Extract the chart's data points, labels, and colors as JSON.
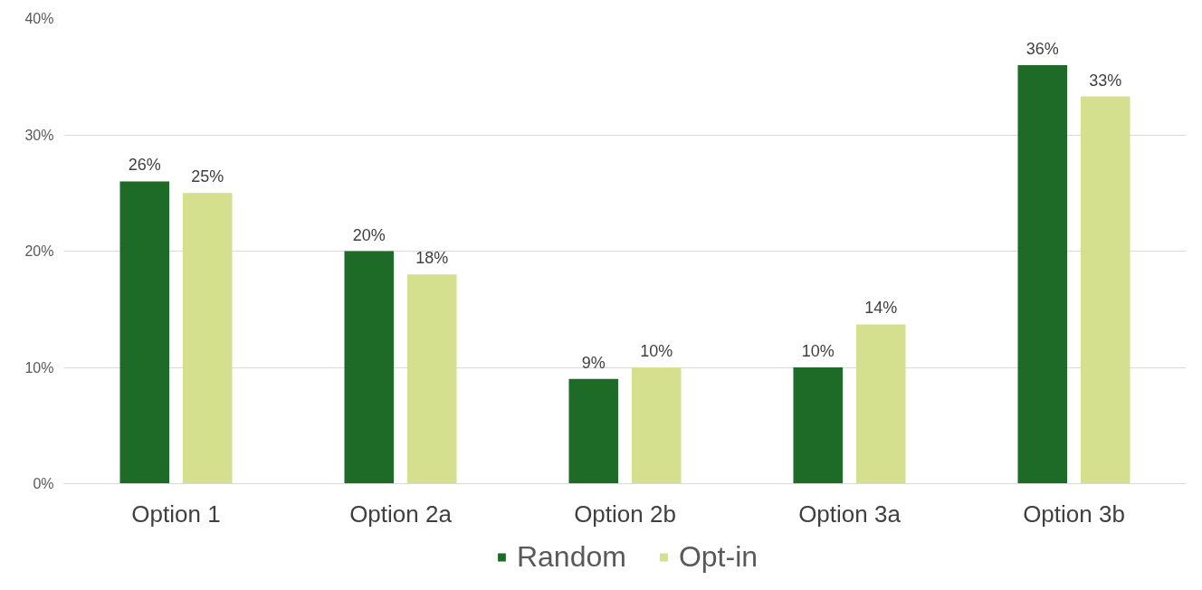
{
  "chart_data": {
    "type": "bar",
    "categories": [
      "Option 1",
      "Option 2a",
      "Option 2b",
      "Option 3a",
      "Option 3b"
    ],
    "series": [
      {
        "name": "Random",
        "color": "#1d6b26",
        "values": [
          26,
          20,
          9,
          10,
          36
        ],
        "value_labels": [
          "26%",
          "20%",
          "9%",
          "10%",
          "36%"
        ]
      },
      {
        "name": "Opt-in",
        "color": "#d5e08f",
        "values": [
          25,
          18,
          10,
          13.7,
          33.3
        ],
        "value_labels": [
          "25%",
          "18%",
          "10%",
          "14%",
          "33%"
        ]
      }
    ],
    "ylim": [
      0,
      40
    ],
    "yticks": [
      {
        "value": 0,
        "label": "0%"
      },
      {
        "value": 10,
        "label": "10%"
      },
      {
        "value": 20,
        "label": "20%"
      },
      {
        "value": 30,
        "label": "30%"
      },
      {
        "value": 40,
        "label": "40%"
      }
    ],
    "grid": "y",
    "legend": "bottom"
  }
}
